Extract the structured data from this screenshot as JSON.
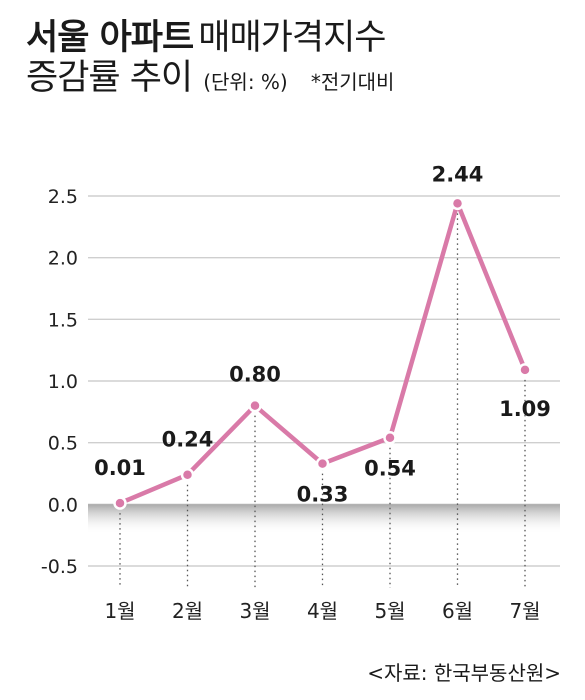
{
  "title": {
    "bold": "서울 아파트",
    "light": "매매가격지수",
    "line2_bold": "증감률 추이",
    "unit": "(단위: %)",
    "note": "*전기대비"
  },
  "source": "<자료: 한국부동산원>",
  "colors": {
    "line": "#d97aa8",
    "grid": "#cfcfcf",
    "shade": "#9a9a9a"
  },
  "chart_data": {
    "type": "line",
    "categories": [
      "1월",
      "2월",
      "3월",
      "4월",
      "5월",
      "6월",
      "7월"
    ],
    "series": [
      {
        "values": [
          0.01,
          0.24,
          0.8,
          0.33,
          0.54,
          2.44,
          1.09
        ],
        "labels": [
          "0.01",
          "0.24",
          "0.80",
          "0.33",
          "0.54",
          "2.44",
          "1.09"
        ]
      }
    ],
    "yticks": [
      "-0.5",
      "0.0",
      "0.5",
      "1.0",
      "1.5",
      "2.0",
      "2.5"
    ],
    "ylim": [
      -0.5,
      2.5
    ],
    "grid": true,
    "zero_band_shading": true
  }
}
